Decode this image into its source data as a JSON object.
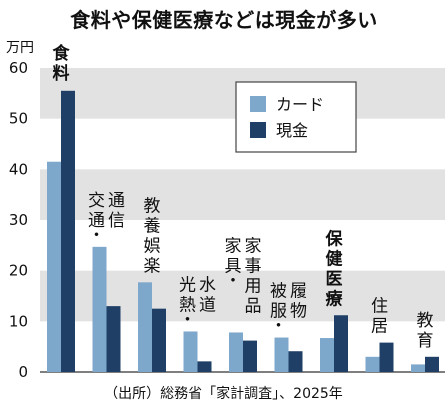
{
  "title": "食料や保健医療などは現金が多い",
  "unit_label": "万円",
  "source": "（出所）総務省「家計調査」、2025年",
  "colors": {
    "card": "#7ea7cc",
    "cash": "#1f3f66",
    "band": "#e2e2e2"
  },
  "chart_data": {
    "type": "bar",
    "categories": [
      "食料",
      "交通・通信",
      "教養娯楽",
      "光熱・水道",
      "家具・家事用品",
      "被服・履物",
      "保健医療",
      "住居",
      "教育"
    ],
    "highlight": [
      "食料",
      "保健医療"
    ],
    "series": [
      {
        "name": "カード",
        "values": [
          41.5,
          24.7,
          17.7,
          8.0,
          7.8,
          6.8,
          6.7,
          3.0,
          1.5
        ]
      },
      {
        "name": "現金",
        "values": [
          55.5,
          13.0,
          12.5,
          2.1,
          6.2,
          4.1,
          11.2,
          5.8,
          3.0
        ]
      }
    ],
    "ylim": [
      0,
      60
    ],
    "yticks": [
      0,
      10,
      20,
      30,
      40,
      50,
      60
    ],
    "legend_position": "top-right",
    "grid": "alternating horizontal bands"
  }
}
